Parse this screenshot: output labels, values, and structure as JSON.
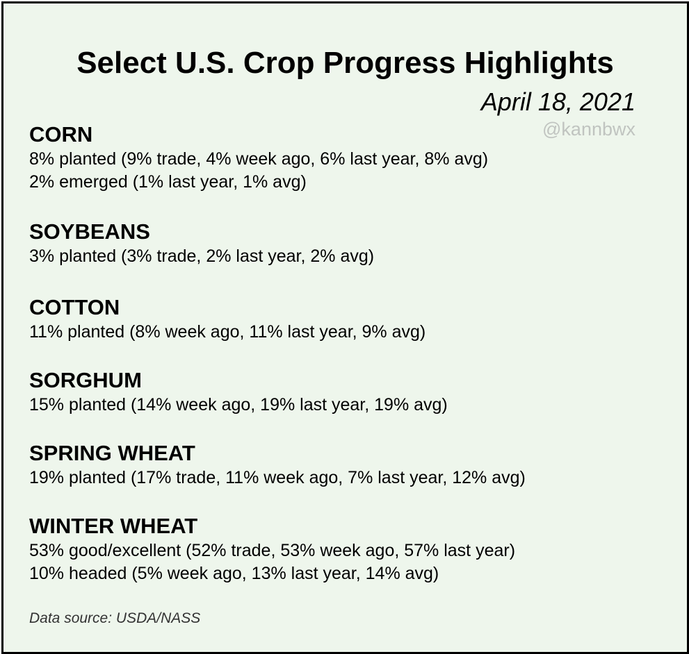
{
  "title": "Select U.S. Crop Progress Highlights",
  "date": "April 18, 2021",
  "handle": "@kannbwx",
  "sections": [
    {
      "heading": "CORN",
      "lines": [
        "8% planted (9% trade, 4% week ago, 6% last year, 8% avg)",
        "2% emerged (1% last year, 1% avg)"
      ]
    },
    {
      "heading": "SOYBEANS",
      "lines": [
        "3% planted (3% trade, 2% last year, 2% avg)"
      ]
    },
    {
      "heading": "COTTON",
      "lines": [
        "11% planted (8% week ago, 11% last year, 9% avg)"
      ]
    },
    {
      "heading": "SORGHUM",
      "lines": [
        "15% planted (14% week ago, 19% last year, 19% avg)"
      ]
    },
    {
      "heading": "SPRING WHEAT",
      "lines": [
        "19% planted (17% trade, 11% week ago, 7% last year, 12% avg)"
      ]
    },
    {
      "heading": "WINTER WHEAT",
      "lines": [
        "53% good/excellent (52% trade, 53% week ago, 57% last year)",
        "10% headed (5% week ago, 13% last year, 14% avg)"
      ]
    }
  ],
  "source": "Data source: USDA/NASS",
  "colors": {
    "background": "#eef6ec",
    "border": "#000000",
    "handle": "#c0c4c0"
  }
}
